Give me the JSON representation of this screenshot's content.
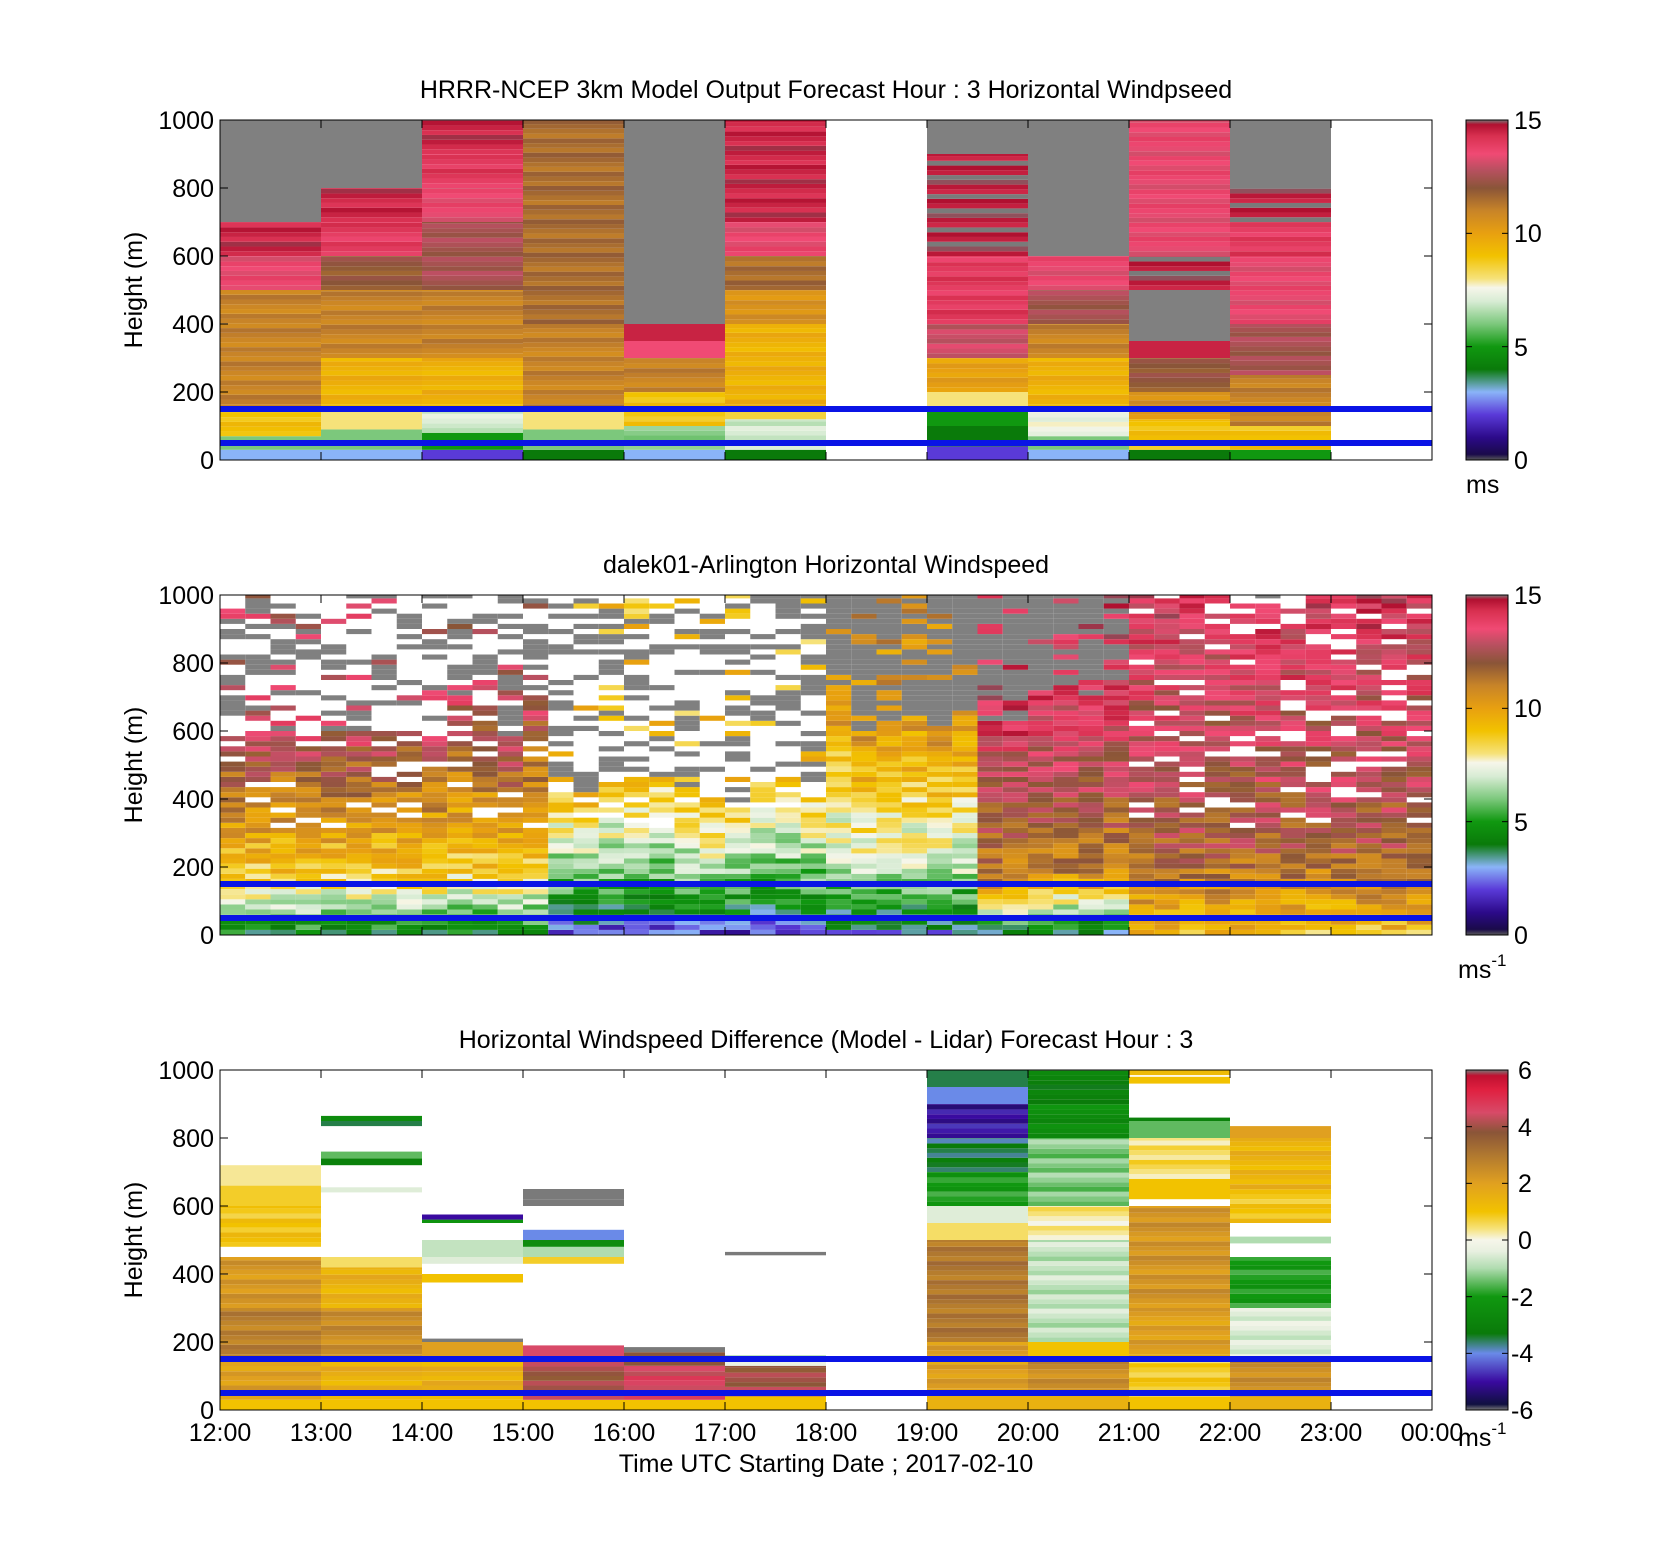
{
  "figure": {
    "xlabel": "Time UTC  Starting Date ; 2017-02-10",
    "x_ticks": [
      "12:00",
      "13:00",
      "14:00",
      "15:00",
      "16:00",
      "17:00",
      "18:00",
      "19:00",
      "20:00",
      "21:00",
      "22:00",
      "23:00",
      "00:00"
    ],
    "ylabel": "Height (m)",
    "y_ticks": [
      "0",
      "200",
      "400",
      "600",
      "800",
      "1000"
    ],
    "reference_lines_m": [
      50,
      150
    ],
    "reference_line_color": "#0a14e6"
  },
  "chart_data": [
    {
      "type": "heatmap",
      "title": "HRRR-NCEP 3km Model Output   Forecast Hour : 3 Horizontal Windpseed",
      "ylim": [
        0,
        1000
      ],
      "xlim_hours": [
        12,
        24
      ],
      "colorbar": {
        "range": [
          0,
          15
        ],
        "ticks": [
          "0",
          "5",
          "10",
          "15"
        ],
        "unit": "ms"
      },
      "data_note": "model columns, one per forecast hour; segments [bottom_m, top_m, speed]",
      "columns": [
        {
          "hour": 12,
          "segments": [
            [
              0,
              30,
              3
            ],
            [
              30,
              70,
              6
            ],
            [
              70,
              150,
              9
            ],
            [
              150,
              500,
              11
            ],
            [
              500,
              600,
              13.5
            ],
            [
              600,
              700,
              14.5
            ],
            [
              700,
              1000,
              null
            ]
          ]
        },
        {
          "hour": 13,
          "segments": [
            [
              0,
              30,
              3
            ],
            [
              30,
              90,
              6
            ],
            [
              90,
              150,
              8
            ],
            [
              150,
              300,
              9.5
            ],
            [
              300,
              500,
              11
            ],
            [
              500,
              600,
              12
            ],
            [
              600,
              700,
              14
            ],
            [
              700,
              800,
              14.5
            ],
            [
              800,
              1000,
              null
            ]
          ]
        },
        {
          "hour": 14,
          "segments": [
            [
              0,
              30,
              2
            ],
            [
              30,
              80,
              5
            ],
            [
              80,
              150,
              7
            ],
            [
              150,
              300,
              9.5
            ],
            [
              300,
              500,
              11
            ],
            [
              500,
              700,
              12.5
            ],
            [
              700,
              800,
              13.5
            ],
            [
              800,
              900,
              14
            ],
            [
              900,
              1000,
              14.5
            ]
          ]
        },
        {
          "hour": 15,
          "segments": [
            [
              0,
              30,
              4
            ],
            [
              30,
              90,
              6
            ],
            [
              90,
              150,
              8
            ],
            [
              150,
              400,
              11
            ],
            [
              400,
              1000,
              11.5
            ]
          ]
        },
        {
          "hour": 16,
          "segments": [
            [
              0,
              30,
              3
            ],
            [
              30,
              100,
              6
            ],
            [
              100,
              200,
              9
            ],
            [
              200,
              300,
              11
            ],
            [
              300,
              350,
              13.5
            ],
            [
              350,
              400,
              14.5
            ],
            [
              400,
              1000,
              null
            ]
          ]
        },
        {
          "hour": 17,
          "segments": [
            [
              0,
              30,
              4
            ],
            [
              30,
              120,
              7
            ],
            [
              120,
              150,
              8.5
            ],
            [
              150,
              400,
              9.5
            ],
            [
              400,
              500,
              10.5
            ],
            [
              500,
              600,
              11.5
            ],
            [
              600,
              700,
              13.5
            ],
            [
              700,
              1000,
              14.5
            ]
          ]
        },
        {
          "hour": 18,
          "segments": []
        },
        {
          "hour": 19,
          "segments": [
            [
              0,
              40,
              2
            ],
            [
              40,
              100,
              4
            ],
            [
              100,
              150,
              5
            ],
            [
              150,
              200,
              8
            ],
            [
              200,
              300,
              10
            ],
            [
              300,
              400,
              13
            ],
            [
              400,
              600,
              14
            ],
            [
              600,
              900,
              14.8
            ],
            [
              900,
              1000,
              null
            ]
          ]
        },
        {
          "hour": 20,
          "segments": [
            [
              0,
              30,
              3
            ],
            [
              30,
              70,
              6
            ],
            [
              70,
              150,
              7.5
            ],
            [
              150,
              300,
              9.5
            ],
            [
              300,
              400,
              11
            ],
            [
              400,
              500,
              12.5
            ],
            [
              500,
              600,
              13.5
            ],
            [
              600,
              1000,
              null
            ]
          ]
        },
        {
          "hour": 21,
          "segments": [
            [
              0,
              30,
              4
            ],
            [
              30,
              120,
              9
            ],
            [
              120,
              200,
              10.5
            ],
            [
              200,
              300,
              12
            ],
            [
              300,
              350,
              14.5
            ],
            [
              350,
              500,
              null
            ],
            [
              500,
              600,
              14.8
            ],
            [
              600,
              1000,
              13.5
            ]
          ]
        },
        {
          "hour": 22,
          "segments": [
            [
              0,
              30,
              5
            ],
            [
              30,
              100,
              9
            ],
            [
              100,
              250,
              11
            ],
            [
              250,
              400,
              12.5
            ],
            [
              400,
              600,
              13.5
            ],
            [
              600,
              700,
              14
            ],
            [
              700,
              800,
              14.8
            ],
            [
              800,
              1000,
              null
            ]
          ]
        },
        {
          "hour": 23,
          "segments": []
        }
      ]
    },
    {
      "type": "heatmap",
      "title": "dalek01-Arlington  Horizontal Windspeed",
      "ylim": [
        0,
        1000
      ],
      "xlim_hours": [
        12,
        24
      ],
      "colorbar": {
        "range": [
          0,
          15
        ],
        "ticks": [
          "0",
          "5",
          "10",
          "15"
        ],
        "unit": "ms",
        "unit_sup": "-1"
      },
      "data_note": "lidar profiles in four time blocks: near-surface slow winds, strongest aloft; values in m s-1",
      "periods": [
        {
          "start": 12.0,
          "end": 15.25,
          "surface": 4.5,
          "mid": 8.5,
          "upper": 13,
          "top_m": 640,
          "gaps": true
        },
        {
          "start": 15.25,
          "end": 17.8,
          "surface": 2,
          "mid": 5,
          "upper": 9,
          "top_m": 420,
          "gaps": true
        },
        {
          "start": 17.8,
          "end": 19.5,
          "surface": 3,
          "mid": 6.5,
          "upper": 10.5,
          "top_m": 650,
          "gaps": false
        },
        {
          "start": 19.5,
          "end": 21.0,
          "surface": 4,
          "mid": 11,
          "upper": 14,
          "top_m": 680,
          "gaps": false
        },
        {
          "start": 21.0,
          "end": 24.0,
          "surface": 9,
          "mid": 12,
          "upper": 14,
          "top_m": 1000,
          "gaps": true
        }
      ]
    },
    {
      "type": "heatmap",
      "title": "Horizontal Windspeed Difference (Model - Lidar) Forecast Hour : 3",
      "ylim": [
        0,
        1000
      ],
      "xlim_hours": [
        12,
        24
      ],
      "colorbar": {
        "range": [
          -6,
          6
        ],
        "ticks": [
          "-6",
          "-4",
          "-2",
          "0",
          "2",
          "4",
          "6"
        ],
        "unit": "ms",
        "unit_sup": "-1"
      },
      "data_note": "difference per model hour; segments [bottom_m, top_m, diff]",
      "columns": [
        {
          "hour": 12,
          "segments": [
            [
              0,
              30,
              1
            ],
            [
              30,
              150,
              2
            ],
            [
              150,
              300,
              2.8
            ],
            [
              300,
              450,
              2.2
            ],
            [
              480,
              600,
              1
            ],
            [
              600,
              660,
              0.8
            ],
            [
              660,
              720,
              0.3
            ]
          ]
        },
        {
          "hour": 13,
          "segments": [
            [
              0,
              30,
              1
            ],
            [
              30,
              150,
              1.5
            ],
            [
              150,
              300,
              2.5
            ],
            [
              300,
              420,
              1.5
            ],
            [
              420,
              450,
              0.5
            ],
            [
              640,
              655,
              -0.5
            ],
            [
              720,
              740,
              -3
            ],
            [
              740,
              760,
              -1.5
            ],
            [
              835,
              850,
              -3.5
            ],
            [
              850,
              865,
              -2.5
            ]
          ]
        },
        {
          "hour": 14,
          "segments": [
            [
              0,
              30,
              1
            ],
            [
              30,
              150,
              1.5
            ],
            [
              150,
              200,
              2
            ],
            [
              200,
              210,
              6
            ],
            [
              375,
              400,
              1
            ],
            [
              430,
              450,
              -0.5
            ],
            [
              450,
              500,
              -0.8
            ],
            [
              550,
              560,
              -2.2
            ],
            [
              560,
              575,
              -5
            ]
          ]
        },
        {
          "hour": 15,
          "segments": [
            [
              0,
              30,
              1
            ],
            [
              30,
              150,
              4
            ],
            [
              150,
              190,
              4.5
            ],
            [
              430,
              450,
              0.8
            ],
            [
              450,
              480,
              -1
            ],
            [
              480,
              500,
              -2.5
            ],
            [
              500,
              530,
              -4
            ],
            [
              600,
              620,
              -6
            ],
            [
              620,
              650,
              6
            ]
          ]
        },
        {
          "hour": 16,
          "segments": [
            [
              0,
              30,
              1
            ],
            [
              30,
              130,
              4.5
            ],
            [
              130,
              170,
              3.8
            ],
            [
              170,
              185,
              6
            ]
          ]
        },
        {
          "hour": 17,
          "segments": [
            [
              0,
              40,
              1
            ],
            [
              40,
              130,
              4
            ],
            [
              130,
              150,
              -0.3
            ],
            [
              150,
              160,
              -1.5
            ],
            [
              455,
              465,
              6
            ]
          ]
        },
        {
          "hour": 18,
          "segments": []
        },
        {
          "hour": 19,
          "segments": [
            [
              0,
              50,
              1.5
            ],
            [
              50,
              200,
              2
            ],
            [
              200,
              500,
              3
            ],
            [
              500,
              550,
              0.5
            ],
            [
              550,
              600,
              -0.5
            ],
            [
              600,
              700,
              -2
            ],
            [
              700,
              800,
              -3.5
            ],
            [
              800,
              900,
              -5
            ],
            [
              900,
              950,
              -4
            ],
            [
              950,
              1000,
              -3.5
            ]
          ]
        },
        {
          "hour": 20,
          "segments": [
            [
              0,
              50,
              1.5
            ],
            [
              50,
              150,
              2.5
            ],
            [
              150,
              200,
              1
            ],
            [
              200,
              500,
              -0.8
            ],
            [
              500,
              600,
              0.3
            ],
            [
              600,
              800,
              -1.3
            ],
            [
              800,
              900,
              -2.5
            ],
            [
              900,
              1000,
              -3
            ]
          ]
        },
        {
          "hour": 21,
          "segments": [
            [
              0,
              40,
              1
            ],
            [
              40,
              150,
              0.8
            ],
            [
              150,
              300,
              2
            ],
            [
              300,
              600,
              2.3
            ],
            [
              620,
              680,
              1
            ],
            [
              680,
              800,
              0.5
            ],
            [
              800,
              850,
              -1.5
            ],
            [
              850,
              860,
              -3
            ],
            [
              960,
              980,
              1
            ],
            [
              985,
              1000,
              1.2
            ]
          ]
        },
        {
          "hour": 22,
          "segments": [
            [
              0,
              40,
              1.5
            ],
            [
              40,
              150,
              2.5
            ],
            [
              150,
              300,
              -0.5
            ],
            [
              300,
              450,
              -2
            ],
            [
              490,
              510,
              -1
            ],
            [
              550,
              650,
              1
            ],
            [
              650,
              800,
              1.4
            ],
            [
              800,
              835,
              2
            ]
          ]
        },
        {
          "hour": 23,
          "segments": []
        }
      ]
    }
  ]
}
